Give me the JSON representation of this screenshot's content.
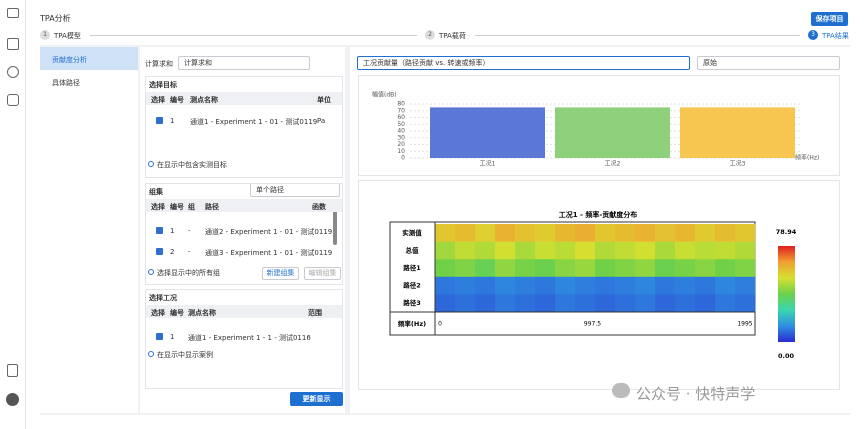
{
  "header": {
    "title": "TPA分析",
    "save_button": "保存项目"
  },
  "steps": [
    {
      "number": "1",
      "label": "TPA模型"
    },
    {
      "number": "2",
      "label": "TPA载荷"
    },
    {
      "number": "3",
      "label": "TPA结果"
    }
  ],
  "nav": [
    "贡献度分析",
    "具体路径"
  ],
  "sum": {
    "label": "计算求和",
    "select": "计算求和"
  },
  "targets": {
    "title": "选择目标",
    "columns": [
      "选择",
      "编号",
      "测点名称",
      "单位"
    ],
    "rows": [
      [
        "1",
        "通道1 - Experiment 1 - 01 - 测试0119",
        "Pa"
      ]
    ],
    "option": "在显示中包含实测目标"
  },
  "groups": {
    "title": "组集",
    "select": "单个路径",
    "columns": [
      "选择",
      "编号",
      "组",
      "路径",
      "函数"
    ],
    "rows": [
      [
        "1",
        "-",
        "通道2 - Experiment 1 - 01 - 测试0119"
      ],
      [
        "2",
        "-",
        "通道3 - Experiment 1 - 01 - 测试0119"
      ]
    ],
    "option": "选择显示中的所有组",
    "buttons": [
      "新建组集",
      "编辑组集"
    ]
  },
  "cases": {
    "title": "选择工况",
    "columns": [
      "选择",
      "编号",
      "测点名称",
      "范围"
    ],
    "rows": [
      [
        "1",
        "通道1 - Experiment 1 - 1 - 测试0116",
        "-"
      ]
    ],
    "option": "在显示中显示案例"
  },
  "update_button": "更新显示",
  "view_select": "工况贡献量（路径贡献 vs. 转速或频率）",
  "scale_select": "原始",
  "watermark": "公众号 · 快特声学",
  "chart_data": [
    {
      "type": "bar",
      "ylabel": "幅值(dB)",
      "xlabel": "频率(Hz)",
      "categories": [
        "工况1",
        "工况2",
        "工况3"
      ],
      "values": [
        75,
        75,
        75
      ],
      "colors": [
        "#5b78d6",
        "#8fd07c",
        "#f6c650"
      ],
      "ylim": [
        0,
        80
      ],
      "yticks": [
        0,
        10,
        20,
        30,
        40,
        50,
        60,
        70,
        80
      ],
      "grid": true
    },
    {
      "type": "heatmap",
      "title": "工况1 - 频率-贡献度分布",
      "rows": [
        "实测值",
        "总值",
        "路径1",
        "路径2",
        "路径3"
      ],
      "xlabel": "频率(Hz)",
      "xlim": [
        0,
        1995
      ],
      "xticks": [
        0,
        997.5,
        1995
      ],
      "z": [
        [
          58,
          60,
          56,
          62,
          59,
          57,
          61,
          63,
          58,
          60,
          62,
          59,
          61,
          57,
          60,
          58
        ],
        [
          46,
          50,
          48,
          52,
          47,
          51,
          49,
          53,
          48,
          50,
          52,
          47,
          51,
          49,
          50,
          48
        ],
        [
          40,
          42,
          38,
          44,
          41,
          39,
          43,
          45,
          40,
          42,
          44,
          39,
          41,
          43,
          40,
          42
        ],
        [
          10,
          11,
          10,
          12,
          11,
          10,
          12,
          11,
          10,
          11,
          12,
          10,
          11,
          10,
          12,
          11
        ],
        [
          8,
          9,
          8,
          10,
          9,
          8,
          10,
          9,
          8,
          9,
          10,
          8,
          9,
          8,
          10,
          9
        ]
      ],
      "zlim": [
        0,
        78.94
      ],
      "zticks": [
        {
          "value": 0,
          "label": "0.00"
        },
        78.94
      ],
      "colorscale": [
        "#2a2ad0",
        "#2f8fe0",
        "#3ad6b0",
        "#6cd04a",
        "#d6e030",
        "#f0a030",
        "#e02020"
      ]
    }
  ]
}
